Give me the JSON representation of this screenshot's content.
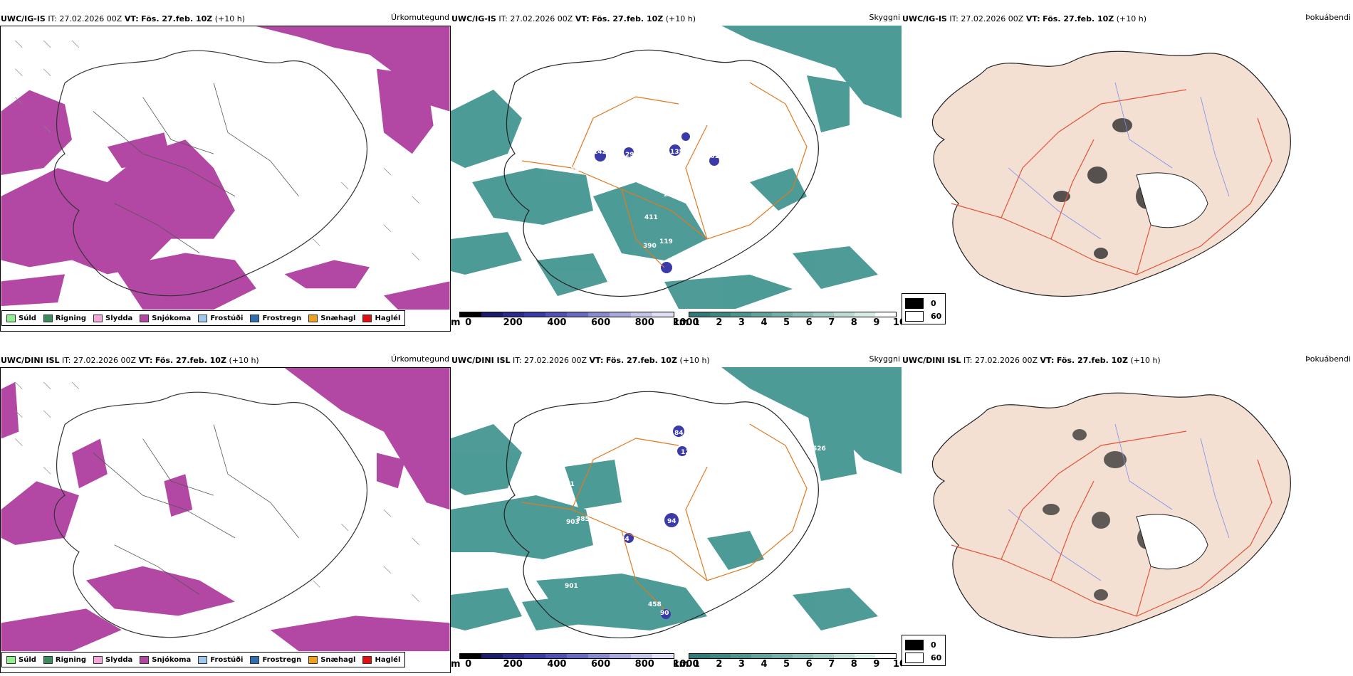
{
  "rows": [
    {
      "model": "UWC/IG-IS",
      "it_label": "IT:",
      "it_value": "27.02.2026 00Z",
      "vt_label": "VT:",
      "vt_value": "Fös. 27.feb. 10Z",
      "lead": "(+10 h)",
      "panel_precip_title": "Úrkomutegund",
      "panel_cloud_title": "Skyggni",
      "panel_fog_title": "Þokuábendi",
      "cloud_labels": [
        "142",
        "297",
        "140",
        "277",
        "135",
        "161",
        "184",
        "411",
        "390",
        "119",
        "985",
        "144",
        "134"
      ]
    },
    {
      "model": "UWC/DINI ISL",
      "it_label": "IT:",
      "it_value": "27.02.2026 00Z",
      "vt_label": "VT:",
      "vt_value": "Fös. 27.feb. 10Z",
      "lead": "(+10 h)",
      "panel_precip_title": "Úrkomutegund",
      "panel_cloud_title": "Skyggni",
      "panel_fog_title": "Þokuábendi",
      "cloud_labels": [
        "261",
        "526",
        "903",
        "385",
        "94",
        "291",
        "901",
        "458",
        "90",
        "126",
        "134",
        "84"
      ]
    }
  ],
  "precip_legend": [
    {
      "label": "Súld",
      "color": "#90ee90"
    },
    {
      "label": "Rigning",
      "color": "#3a8d5a"
    },
    {
      "label": "Slydda",
      "color": "#f4a6d7"
    },
    {
      "label": "Snjókoma",
      "color": "#b347a4"
    },
    {
      "label": "Frostúði",
      "color": "#9cc8f0"
    },
    {
      "label": "Frostregn",
      "color": "#2f6fb0"
    },
    {
      "label": "Snæhagl",
      "color": "#f0a020"
    },
    {
      "label": "Haglél",
      "color": "#e01010"
    }
  ],
  "ceiling_bar": {
    "unit": "m",
    "ticks": [
      "0",
      "200",
      "400",
      "600",
      "800",
      "1000"
    ],
    "colors": [
      "#000000",
      "#1c1c6e",
      "#2a2a90",
      "#3a3aa8",
      "#5050b8",
      "#6a6ac4",
      "#8a8ad0",
      "#a8a8dc",
      "#c4c4e8",
      "#e0e0f4"
    ]
  },
  "vis_bar": {
    "unit": "km",
    "ticks": [
      "1",
      "2",
      "3",
      "4",
      "5",
      "6",
      "7",
      "8",
      "9",
      "10"
    ],
    "colors": [
      "#2a7d78",
      "#3a8a84",
      "#4c9690",
      "#5ea39c",
      "#72b0a9",
      "#88beb7",
      "#a0ccc6",
      "#bcdcd6",
      "#d8ece8",
      "#ffffff"
    ]
  },
  "fog_key": [
    {
      "label": "0",
      "color": "#000000"
    },
    {
      "label": "60",
      "color": "#ffffff"
    }
  ],
  "colors": {
    "snow": "#b347a4",
    "vis_teal": "#2f8a85",
    "roads": "#e07a20",
    "land_fog": "#f3e0d2",
    "rivers": "#7d8cf0"
  }
}
